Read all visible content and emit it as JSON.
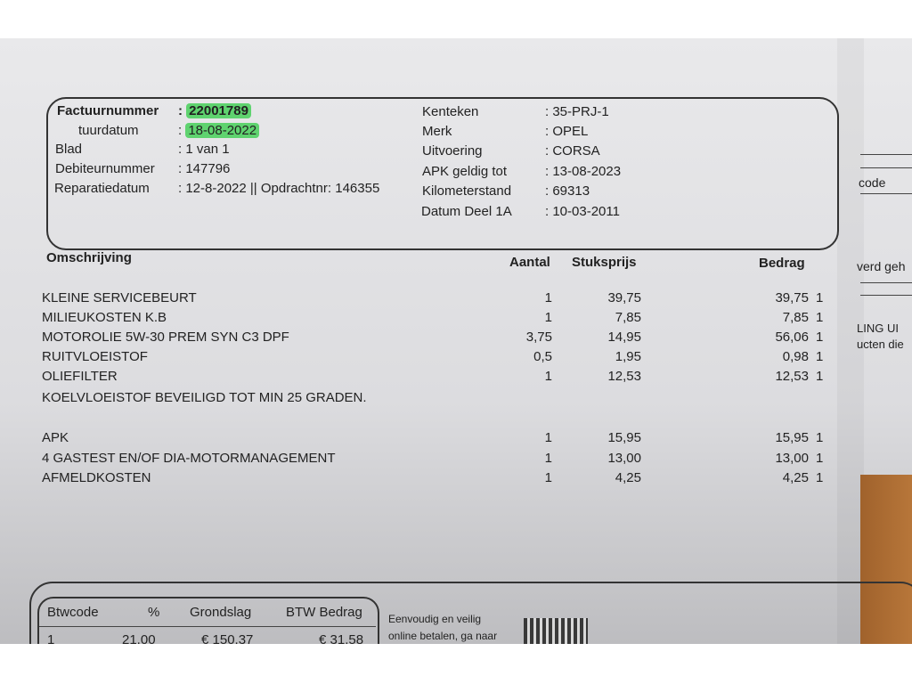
{
  "header": {
    "left": [
      {
        "label": "Factuurnummer",
        "value": "22001789",
        "highlighted": true,
        "bold": true
      },
      {
        "label": "tuurdatum",
        "value": "18-08-2022",
        "highlighted": true
      },
      {
        "label": "Blad",
        "value": "1 van 1"
      },
      {
        "label": "Debiteurnummer",
        "value": "147796"
      },
      {
        "label": "Reparatiedatum",
        "value": "12-8-2022 || Opdrachtnr: 146355"
      }
    ],
    "right": [
      {
        "label": "Kenteken",
        "value": "35-PRJ-1"
      },
      {
        "label": "Merk",
        "value": "OPEL"
      },
      {
        "label": "Uitvoering",
        "value": "CORSA"
      },
      {
        "label": "APK geldig tot",
        "value": "13-08-2023"
      },
      {
        "label": "Kilometerstand",
        "value": "69313"
      },
      {
        "label": "Datum Deel 1A",
        "value": "10-03-2011"
      }
    ],
    "highlight_color": "#5fd36f"
  },
  "table": {
    "columns": [
      "Omschrijving",
      "Aantal",
      "Stuksprijs",
      "Bedrag"
    ],
    "rows": [
      {
        "desc": "KLEINE SERVICEBEURT",
        "qty": "1",
        "price": "39,75",
        "amount": "39,75",
        "code": "1"
      },
      {
        "desc": "MILIEUKOSTEN K.B",
        "qty": "1",
        "price": "7,85",
        "amount": "7,85",
        "code": "1"
      },
      {
        "desc": "MOTOROLIE 5W-30 PREM SYN C3 DPF",
        "qty": "3,75",
        "price": "14,95",
        "amount": "56,06",
        "code": "1"
      },
      {
        "desc": "RUITVLOEISTOF",
        "qty": "0,5",
        "price": "1,95",
        "amount": "0,98",
        "code": "1"
      },
      {
        "desc": "OLIEFILTER",
        "qty": "1",
        "price": "12,53",
        "amount": "12,53",
        "code": "1"
      },
      {
        "desc": "KOELVLOEISTOF BEVEILIGD TOT MIN 25 GRADEN.",
        "qty": "",
        "price": "",
        "amount": "",
        "code": ""
      },
      {
        "desc": "APK",
        "qty": "1",
        "price": "15,95",
        "amount": "15,95",
        "code": "1"
      },
      {
        "desc": "4 GASTEST EN/OF DIA-MOTORMANAGEMENT",
        "qty": "1",
        "price": "13,00",
        "amount": "13,00",
        "code": "1"
      },
      {
        "desc": "AFMELDKOSTEN",
        "qty": "1",
        "price": "4,25",
        "amount": "4,25",
        "code": "1"
      }
    ]
  },
  "vat": {
    "columns": [
      "Btwcode",
      "%",
      "Grondslag",
      "BTW Bedrag"
    ],
    "row": [
      "1",
      "21,00",
      "€ 150,37",
      "€ 31,58"
    ],
    "payment_text_1": "Eenvoudig en veilig",
    "payment_text_2": "online betalen, ga naar"
  },
  "side_sheet": [
    "code",
    "verd geh",
    "LING UI",
    "ucten die"
  ]
}
